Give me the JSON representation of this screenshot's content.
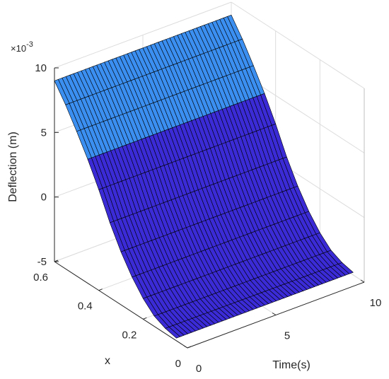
{
  "chart_data": {
    "type": "surface",
    "title": "",
    "xlabel": "Time(s)",
    "ylabel": "x",
    "zlabel": "Deflection (m)",
    "z_exponent_label": {
      "base": "×10",
      "exp": "-3"
    },
    "xlim": [
      0,
      10
    ],
    "ylim": [
      0,
      0.6
    ],
    "zlim": [
      -5,
      10
    ],
    "xticks": [
      "0",
      "5",
      "10"
    ],
    "yticks": [
      "0",
      "0.2",
      "0.4",
      "0.6"
    ],
    "zticks": [
      "-5",
      "0",
      "5",
      "10"
    ],
    "grid": true,
    "colors": {
      "surface_low": "#3a2bd6",
      "surface_high": "#3b8ff0",
      "edge": "#000000",
      "grid": "#dcdcdc",
      "box": "#bfbfbf"
    },
    "surface_x_values_s": [
      0,
      10
    ],
    "surface_position_values": [
      0.05,
      0.1,
      0.15,
      0.2,
      0.25,
      0.3,
      0.35,
      0.4,
      0.45,
      0.5,
      0.55,
      0.6
    ],
    "deflection_profile_mm": [
      -4.8,
      -4.6,
      -4.2,
      -3.4,
      -2.3,
      -0.9,
      0.8,
      2.8,
      4.6,
      6.2,
      7.7,
      9.0
    ],
    "note_values": "Deflection (m) is constant along Time(s) for each x; values given in units of 1e-3 m"
  }
}
